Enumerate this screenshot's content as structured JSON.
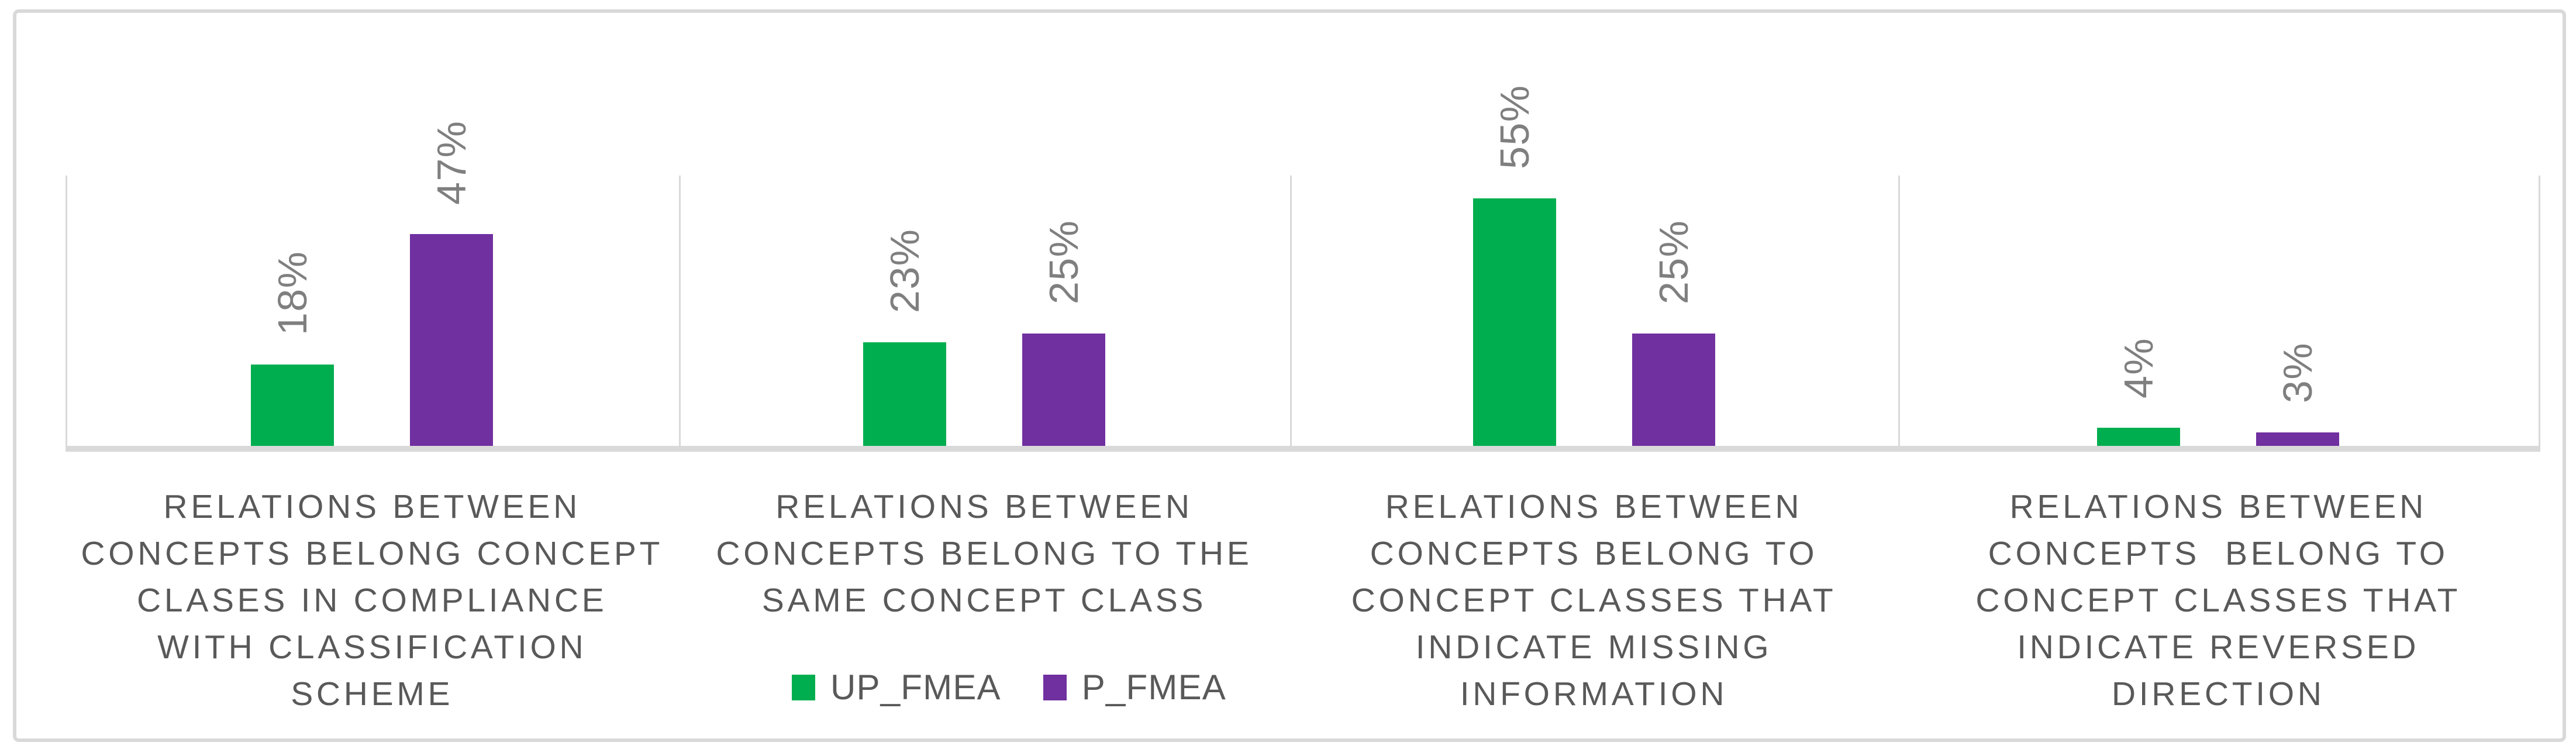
{
  "chart_data": {
    "type": "bar",
    "title": "",
    "xlabel": "",
    "ylabel": "",
    "ylim": [
      0,
      60
    ],
    "grid": "vertical category separators only, no horizontal gridlines, value axis hidden",
    "legend_position": "bottom, left of center under second category",
    "categories": [
      "RELATIONS BETWEEN CONCEPTS BELONG CONCEPT CLASES IN COMPLIANCE WITH CLASSIFICATION SCHEME",
      "RELATIONS BETWEEN CONCEPTS BELONG TO THE SAME CONCEPT CLASS",
      "RELATIONS BETWEEN CONCEPTS BELONG TO CONCEPT CLASSES THAT INDICATE MISSING INFORMATION",
      "RELATIONS BETWEEN CONCEPTS  BELONG TO CONCEPT CLASSES THAT INDICATE REVERSED DIRECTION"
    ],
    "category_label_lines": [
      [
        "RELATIONS BETWEEN",
        "CONCEPTS BELONG CONCEPT",
        "CLASES IN COMPLIANCE",
        "WITH CLASSIFICATION",
        "SCHEME"
      ],
      [
        "RELATIONS BETWEEN",
        "CONCEPTS BELONG TO THE",
        "SAME CONCEPT CLASS"
      ],
      [
        "RELATIONS BETWEEN",
        "CONCEPTS BELONG TO",
        "CONCEPT CLASSES THAT",
        "INDICATE MISSING",
        "INFORMATION"
      ],
      [
        "RELATIONS BETWEEN",
        "CONCEPTS  BELONG TO",
        "CONCEPT CLASSES THAT",
        "INDICATE REVERSED",
        "DIRECTION"
      ]
    ],
    "series": [
      {
        "name": "UP_FMEA",
        "color": "#00AE4F",
        "values": [
          18,
          23,
          55,
          4
        ]
      },
      {
        "name": "P_FMEA",
        "color": "#7030A0",
        "values": [
          47,
          25,
          25,
          3
        ]
      }
    ],
    "data_labels": [
      [
        "18%",
        "47%"
      ],
      [
        "23%",
        "25%"
      ],
      [
        "55%",
        "25%"
      ],
      [
        "4%",
        "3%"
      ]
    ],
    "colors": {
      "axis_and_gridline": "#D9D9D9",
      "frame_border": "#D9D9D9",
      "data_label_text": "#7F7F7F",
      "category_label_text": "#595959",
      "legend_text": "#595959",
      "background": "#FFFFFF"
    }
  }
}
